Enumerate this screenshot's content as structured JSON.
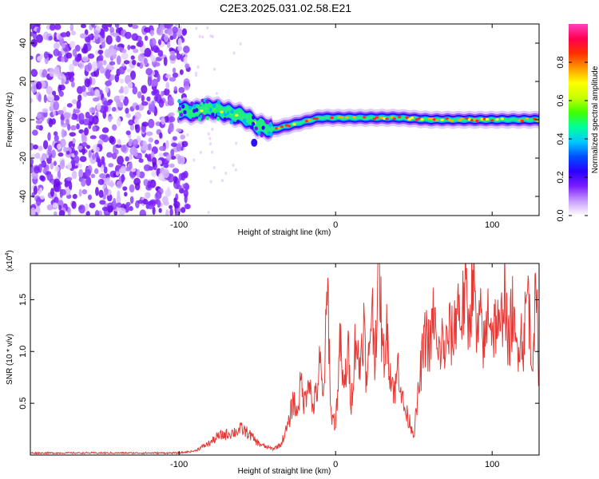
{
  "title": "C2E3.2025.031.02.58.E21",
  "chart_data": [
    {
      "type": "heatmap",
      "name": "spectrogram",
      "xlabel": "Height of straight line (km)",
      "ylabel": "Frequency (Hz)",
      "xlim": [
        -195,
        130
      ],
      "ylim": [
        -50,
        50
      ],
      "xticks": [
        -100,
        0,
        100
      ],
      "yticks": [
        -40,
        -20,
        0,
        20,
        40
      ],
      "colorbar": {
        "label": "Normalized spectral amplitude",
        "range": [
          0.0,
          1.0
        ],
        "ticks": [
          "0.0",
          "0.2",
          "0.4",
          "0.6",
          "0.8"
        ],
        "colors": [
          "#ffffff",
          "#c79bff",
          "#7a1cff",
          "#2a00ff",
          "#0050ff",
          "#00c8ff",
          "#00ff9a",
          "#40ff00",
          "#c8ff00",
          "#ffff00",
          "#ff9a00",
          "#ff3000",
          "#ff0050",
          "#ff40c0"
        ]
      },
      "noise_region_x": [
        -195,
        -100
      ],
      "ridge": {
        "x": [
          -100,
          -90,
          -80,
          -75,
          -70,
          -65,
          -60,
          -55,
          -50,
          -45,
          -40,
          -35,
          -30,
          -25,
          -20,
          -15,
          -10,
          -5,
          0,
          10,
          20,
          30,
          40,
          50,
          60,
          70,
          80,
          90,
          100,
          110,
          120,
          130
        ],
        "y": [
          5,
          4,
          6,
          5,
          4,
          3,
          2,
          0,
          -3,
          -4,
          -5,
          -4,
          -3,
          -2,
          -1,
          0,
          1,
          1,
          1,
          1,
          1,
          1,
          1,
          0.5,
          0,
          0,
          0,
          0,
          0,
          0,
          0,
          0
        ]
      }
    },
    {
      "type": "line",
      "name": "snr",
      "xlabel": "Height of straight line (km)",
      "ylabel": "SNR (10 * v/v)",
      "multiplier": "(x10",
      "multiplier_exp": "4",
      "multiplier_close": ")",
      "color": "#e53935",
      "xlim": [
        -195,
        130
      ],
      "ylim": [
        0.0,
        1.85
      ],
      "xticks": [
        -100,
        0,
        100
      ],
      "yticks": [
        0.5,
        1.0,
        1.5
      ],
      "ytick_labels": [
        "0.5",
        "1.0",
        "1.5"
      ],
      "x": [
        -195,
        -180,
        -160,
        -140,
        -120,
        -100,
        -95,
        -90,
        -85,
        -80,
        -75,
        -70,
        -65,
        -60,
        -55,
        -50,
        -45,
        -40,
        -35,
        -30,
        -27,
        -25,
        -22,
        -20,
        -17,
        -15,
        -12,
        -10,
        -8,
        -5,
        -3,
        0,
        3,
        5,
        8,
        10,
        13,
        15,
        18,
        20,
        23,
        25,
        28,
        30,
        33,
        35,
        38,
        40,
        43,
        45,
        48,
        50,
        53,
        55,
        58,
        60,
        63,
        65,
        68,
        70,
        73,
        75,
        78,
        80,
        83,
        85,
        88,
        90,
        93,
        95,
        98,
        100,
        103,
        105,
        108,
        110,
        113,
        115,
        118,
        120,
        123,
        125,
        128,
        130
      ],
      "y": [
        0.02,
        0.02,
        0.02,
        0.02,
        0.02,
        0.02,
        0.03,
        0.04,
        0.08,
        0.12,
        0.18,
        0.2,
        0.22,
        0.25,
        0.2,
        0.12,
        0.08,
        0.06,
        0.1,
        0.3,
        0.55,
        0.4,
        0.7,
        0.5,
        0.8,
        0.45,
        0.6,
        0.9,
        0.5,
        1.6,
        0.4,
        0.3,
        1.1,
        0.6,
        1.0,
        0.5,
        1.2,
        0.8,
        1.3,
        0.6,
        1.5,
        1.0,
        1.85,
        0.9,
        1.2,
        0.8,
        0.6,
        0.9,
        0.5,
        0.4,
        0.3,
        0.2,
        0.6,
        0.9,
        1.2,
        1.0,
        1.4,
        0.9,
        1.1,
        1.0,
        1.2,
        1.1,
        1.5,
        1.3,
        1.6,
        1.2,
        1.85,
        1.1,
        1.3,
        1.0,
        1.5,
        1.2,
        1.3,
        1.1,
        1.7,
        1.0,
        1.4,
        1.0,
        1.2,
        1.1,
        1.65,
        0.9,
        1.5,
        0.8
      ]
    }
  ]
}
